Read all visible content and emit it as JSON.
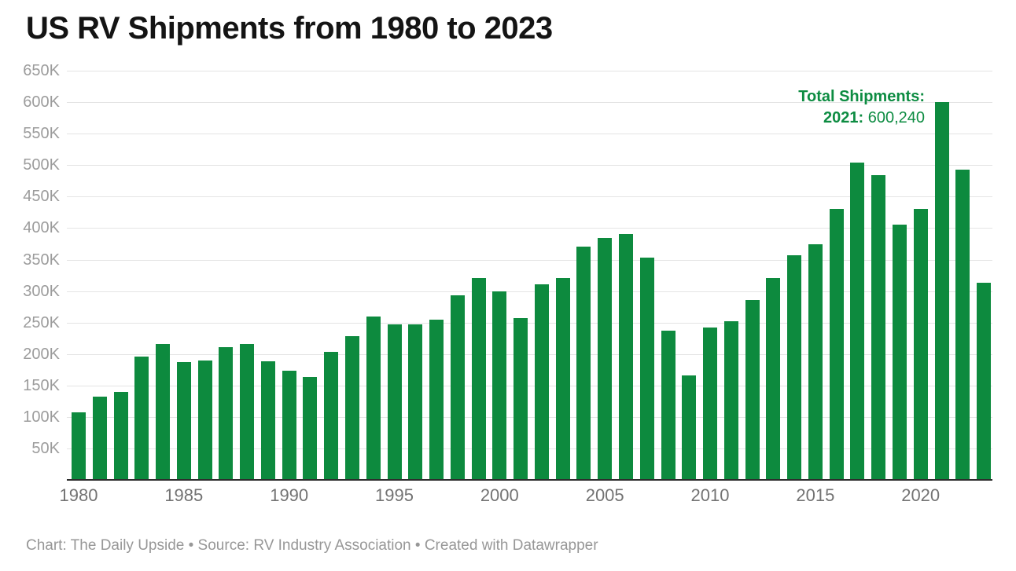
{
  "title": "US RV Shipments from 1980 to 2023",
  "annotation": {
    "line1": "Total Shipments:",
    "line2_label": "2021:",
    "line2_value": "600,240"
  },
  "footer": {
    "text": "Chart: The Daily Upside • Source: RV Industry Association • Created with Datawrapper"
  },
  "colors": {
    "bar": "#0d8a3e",
    "annotation": "#0d8c42",
    "grid": "#e4e4e4",
    "axis": "#2d2d2d",
    "tick": "#9c9c9c",
    "xlabel": "#737373",
    "footer": "#979797",
    "title": "#141414"
  },
  "chart_data": {
    "type": "bar",
    "title": "US RV Shipments from 1980 to 2023",
    "xlabel": "",
    "ylabel": "",
    "grid": "horizontal",
    "legend": "none",
    "ylim": [
      0,
      650000
    ],
    "ytick_interval": 50000,
    "ytick_labels": [
      "50K",
      "100K",
      "150K",
      "200K",
      "250K",
      "300K",
      "350K",
      "400K",
      "450K",
      "500K",
      "550K",
      "600K",
      "650K"
    ],
    "x_axis_ticks": [
      1980,
      1985,
      1990,
      1995,
      2000,
      2005,
      2010,
      2015,
      2020
    ],
    "x": [
      1980,
      1981,
      1982,
      1983,
      1984,
      1985,
      1986,
      1987,
      1988,
      1989,
      1990,
      1991,
      1992,
      1993,
      1994,
      1995,
      1996,
      1997,
      1998,
      1999,
      2000,
      2001,
      2002,
      2003,
      2004,
      2005,
      2006,
      2007,
      2008,
      2009,
      2010,
      2011,
      2012,
      2013,
      2014,
      2015,
      2016,
      2017,
      2018,
      2019,
      2020,
      2021,
      2022,
      2023
    ],
    "values": [
      107200,
      132200,
      140300,
      196500,
      216400,
      186900,
      189200,
      211500,
      215600,
      187900,
      173100,
      163300,
      202800,
      227800,
      259200,
      247000,
      247500,
      254500,
      292700,
      321200,
      300100,
      256800,
      311000,
      320800,
      370100,
      384400,
      390500,
      353400,
      237000,
      165700,
      242300,
      252300,
      285700,
      321100,
      356700,
      374200,
      430700,
      504600,
      483700,
      406100,
      430400,
      600240,
      493300,
      313200
    ],
    "annotated_point": {
      "x": 2021,
      "value": 600240
    }
  }
}
